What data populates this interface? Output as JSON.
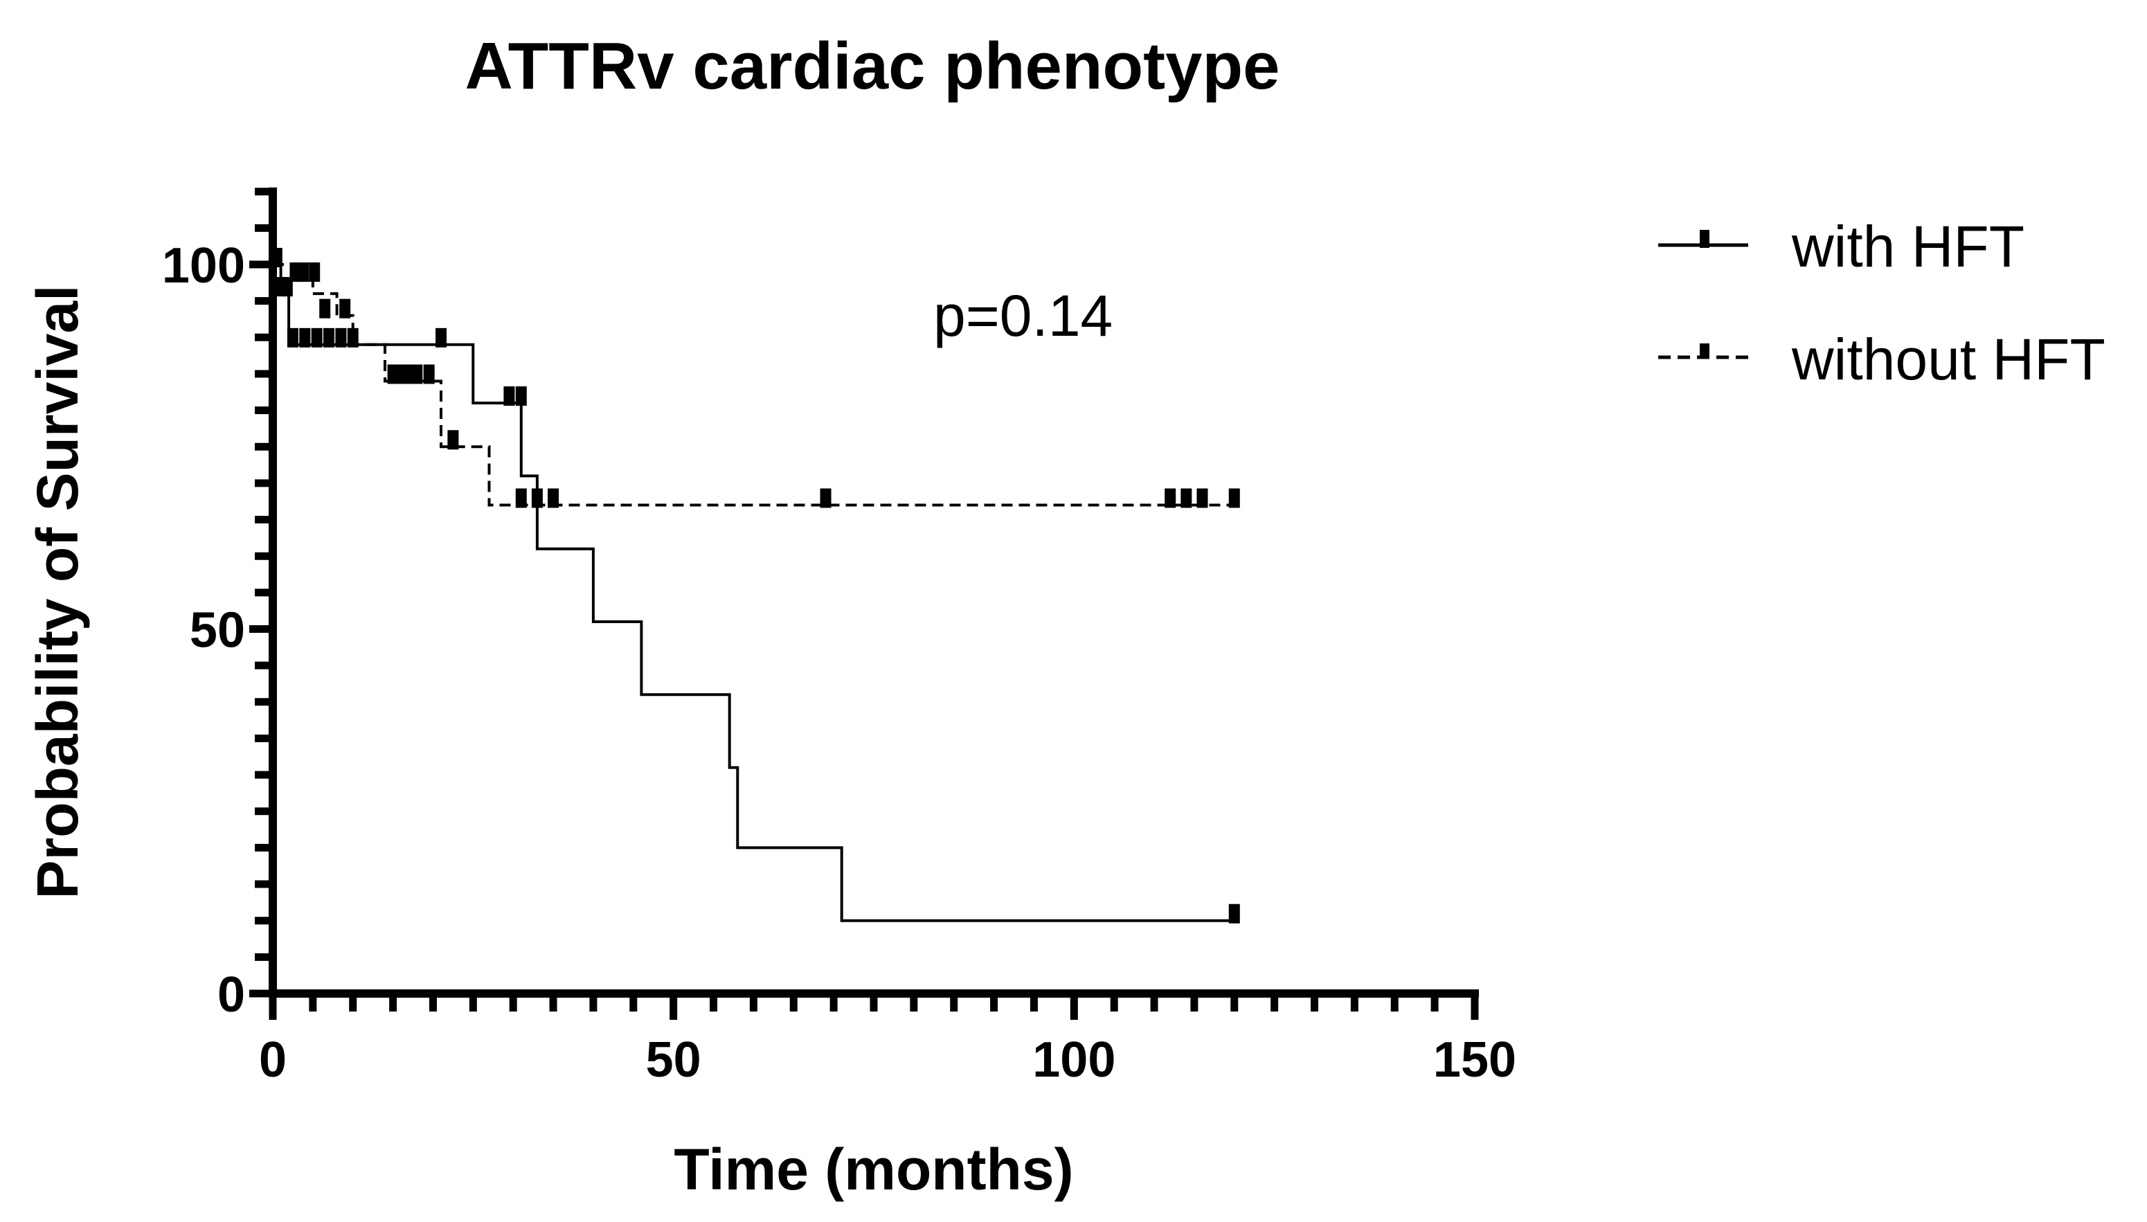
{
  "chart_data": {
    "type": "line",
    "subtype": "kaplan-meier",
    "title": "ATTRv cardiac phenotype",
    "xlabel": "Time (months)",
    "ylabel": "Probability of Survival",
    "xlim": [
      0,
      150
    ],
    "ylim": [
      0,
      110
    ],
    "x_ticks": [
      0,
      50,
      100,
      150
    ],
    "x_tick_labels": [
      "0",
      "50",
      "100",
      "150"
    ],
    "y_ticks": [
      0,
      50,
      100
    ],
    "y_tick_labels": [
      "0",
      "50",
      "100"
    ],
    "x_minor_step": 5,
    "y_minor_step": 5,
    "grid": false,
    "legend_position": "right",
    "annotation": "p=0.14",
    "series": [
      {
        "name": "with HFT",
        "style": "solid",
        "x": [
          0,
          1,
          1,
          2,
          2,
          25,
          25,
          31,
          31,
          33,
          33,
          40,
          40,
          46,
          46,
          57,
          57,
          58,
          58,
          71,
          71,
          120
        ],
        "y": [
          100,
          100,
          97,
          97,
          89,
          89,
          81,
          81,
          71,
          71,
          61,
          61,
          51,
          51,
          41,
          41,
          31,
          31,
          20,
          20,
          10,
          10
        ],
        "censored_x": [
          0.5,
          2.5,
          4,
          5.5,
          7,
          8.5,
          10,
          21,
          29.5,
          31,
          120
        ],
        "censored_y": [
          100,
          89,
          89,
          89,
          89,
          89,
          89,
          89,
          81,
          81,
          10
        ]
      },
      {
        "name": "without HFT",
        "style": "dashed",
        "x": [
          0,
          3,
          3,
          5,
          5,
          8,
          8,
          10,
          10,
          14,
          14,
          21,
          21,
          24,
          24,
          27,
          27,
          120
        ],
        "y": [
          100,
          100,
          98,
          98,
          96,
          96,
          93,
          93,
          89,
          89,
          84,
          84,
          75,
          75,
          75,
          75,
          67,
          67
        ],
        "censored_x": [
          1,
          1.8,
          2.8,
          3.8,
          5.2,
          6.5,
          9,
          15,
          16,
          17,
          18,
          19.5,
          22.5,
          31,
          33,
          35,
          69,
          112,
          114,
          116,
          120
        ],
        "censored_y": [
          96,
          96,
          98,
          98,
          98,
          93,
          93,
          84,
          84,
          84,
          84,
          84,
          75,
          67,
          67,
          67,
          67,
          67,
          67,
          67,
          67
        ]
      }
    ]
  }
}
